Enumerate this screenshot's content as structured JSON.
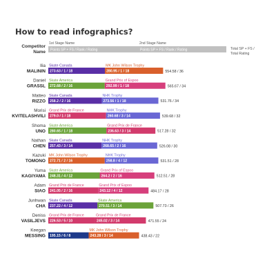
{
  "chart_data": {
    "type": "bar",
    "title": "How to read infographics?",
    "legend": {
      "competitor_header": [
        "Competitor",
        "Name"
      ],
      "stage1_name": "1st Stage Name",
      "stage1_detail": "Points SP + FS / Rank / Rating",
      "stage2_name": "2nd Stage Name",
      "stage2_detail": "Points SP + FS / Rank / Rating",
      "total_label": [
        "Total SP + FS /",
        "Total Rating"
      ]
    },
    "colors": {
      "Skate Canada": "#5a2fa6",
      "MK John Wilson Trophy": "#d9602c",
      "Skate America": "#6ba33a",
      "Grand Prix of Espoo": "#d63f7c",
      "NHK Trophy": "#6a67d4",
      "Grand Prix de France": "#d23b6c",
      "legend_bar": "#c0c0c0"
    },
    "xlim": [
      0,
      580
    ],
    "skaters": [
      {
        "first": "Ilia",
        "last": "MALININ",
        "s1": {
          "event": "Skate Canada",
          "points": 273.63,
          "label": "273.63 / 1 / 18"
        },
        "s2": {
          "event": "MK John Wilson Trophy",
          "points": 280.95,
          "label": "280.95 / 1 / 18"
        },
        "total": "554.58 / 36"
      },
      {
        "first": "Daniel",
        "last": "GRASSL",
        "s1": {
          "event": "Skate America",
          "points": 272.68,
          "label": "272.68 / 2 / 16"
        },
        "s2": {
          "event": "Grand Prix of Espoo",
          "points": 292.99,
          "label": "292.99 / 1 / 18"
        },
        "total": "565.67 / 34"
      },
      {
        "first": "Matteo",
        "last": "RIZZO",
        "s1": {
          "event": "Skate Canada",
          "points": 258.2,
          "label": "258.2 / 2 / 16"
        },
        "s2": {
          "event": "NHK Trophy",
          "points": 273.56,
          "label": "273.56 / 1 / 18"
        },
        "total": "531.76 / 34"
      },
      {
        "first": "Morisi",
        "last": "KVITELASHVILI",
        "s1": {
          "event": "Grand Prix de France",
          "points": 279.0,
          "label": "279.0 / 1 / 18"
        },
        "s2": {
          "event": "NHK Trophy",
          "points": 260.68,
          "label": "260.68 / 3 / 14"
        },
        "total": "539.68 / 32"
      },
      {
        "first": "Shoma",
        "last": "UNO",
        "s1": {
          "event": "Skate America",
          "points": 280.65,
          "label": "280.65 / 1 / 18"
        },
        "s2": {
          "event": "Grand Prix de France",
          "points": 236.63,
          "label": "236.63 / 3 / 14"
        },
        "total": "517.28 / 32"
      },
      {
        "first": "Nathan",
        "last": "CHEN",
        "s1": {
          "event": "Skate Canada",
          "points": 257.43,
          "label": "257.43 / 3 / 14"
        },
        "s2": {
          "event": "NHK Trophy",
          "points": 268.65,
          "label": "268.65 / 2 / 16"
        },
        "total": "526.08 / 30"
      },
      {
        "first": "Kazuki",
        "last": "TOMONO",
        "s1": {
          "event": "MK John Wilson Trophy",
          "points": 272.71,
          "label": "272.71 / 2 / 16"
        },
        "s2": {
          "event": "NHK Trophy",
          "points": 258.8,
          "label": "258.8 / 4 / 12"
        },
        "total": "531.51 / 28"
      },
      {
        "first": "Yuma",
        "last": "KAGIYAMA",
        "s1": {
          "event": "Skate America",
          "points": 248.31,
          "label": "248.31 / 4 / 12"
        },
        "s2": {
          "event": "Grand Prix of Espoo",
          "points": 264.2,
          "label": "264.2 / 2 / 16"
        },
        "total": "512.51 / 28"
      },
      {
        "first": "Adam",
        "last": "SIAO",
        "s1": {
          "event": "Grand Prix de France",
          "points": 241.05,
          "label": "241.05 / 2 / 16"
        },
        "s2": {
          "event": "Grand Prix of Espoo",
          "points": 243.12,
          "label": "243.12 / 4 / 12"
        },
        "total": "484.17 / 28"
      },
      {
        "first": "Junhwan",
        "last": "CHA",
        "s1": {
          "event": "Skate Canada",
          "points": 237.22,
          "label": "237.22 / 4 / 12"
        },
        "s2": {
          "event": "Skate America",
          "points": 270.51,
          "label": "270.51 / 3 / 14"
        },
        "total": "507.73 / 26"
      },
      {
        "first": "Deniss",
        "last": "VASILJEVS",
        "s1": {
          "event": "Grand Prix de France",
          "points": 226.53,
          "label": "226.53 / 5 / 10"
        },
        "s2": {
          "event": "Grand Prix de France",
          "points": 245.02,
          "label": "245.02 / 3 / 14"
        },
        "total": "471.55 / 24"
      },
      {
        "first": "Keegan",
        "last": "MESSING",
        "s1": {
          "event": "",
          "points": 195.15,
          "label": "195.15 / 6 / 8"
        },
        "s2": {
          "event": "MK John Wilson Trophy",
          "points": 243.28,
          "label": "243.28 / 3 / 14"
        },
        "total": "438.43 / 22"
      }
    ]
  }
}
